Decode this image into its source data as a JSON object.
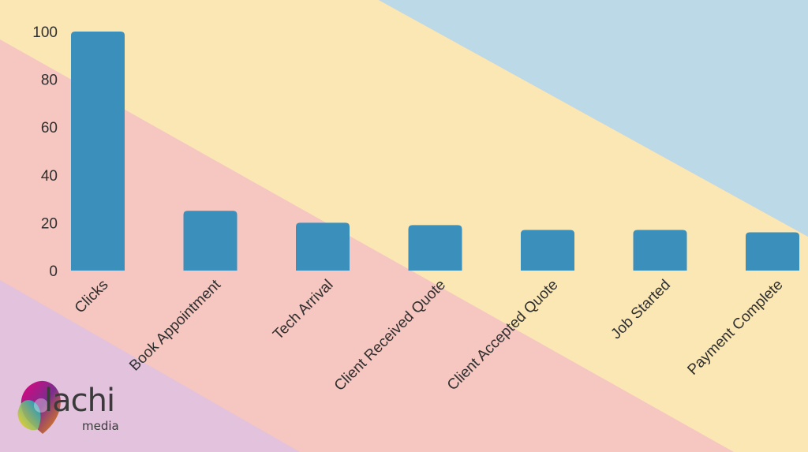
{
  "chart_data": {
    "type": "bar",
    "categories": [
      "Clicks",
      "Book Appointment",
      "Tech Arrival",
      "Client Received Quote",
      "Client Accepted Quote",
      "Job Started",
      "Payment Complete"
    ],
    "values": [
      100,
      25,
      20,
      19,
      17,
      17,
      16
    ],
    "title": "",
    "xlabel": "",
    "ylabel": "",
    "ylim": [
      0,
      100
    ],
    "yticks": [
      0,
      20,
      40,
      60,
      80,
      100
    ],
    "grid": false,
    "legend": "none",
    "bar_color": "#3b8fbb"
  },
  "background": {
    "colors": {
      "blue": "#bcd9e7",
      "yellow": "#fbe7b4",
      "pink": "#f6c6c0",
      "purple": "#e2c2dc"
    }
  },
  "brand": {
    "logo_icon": "lachi-logo-icon",
    "name": "lachi",
    "tagline": "media",
    "text_color": "#3a3a3a"
  }
}
